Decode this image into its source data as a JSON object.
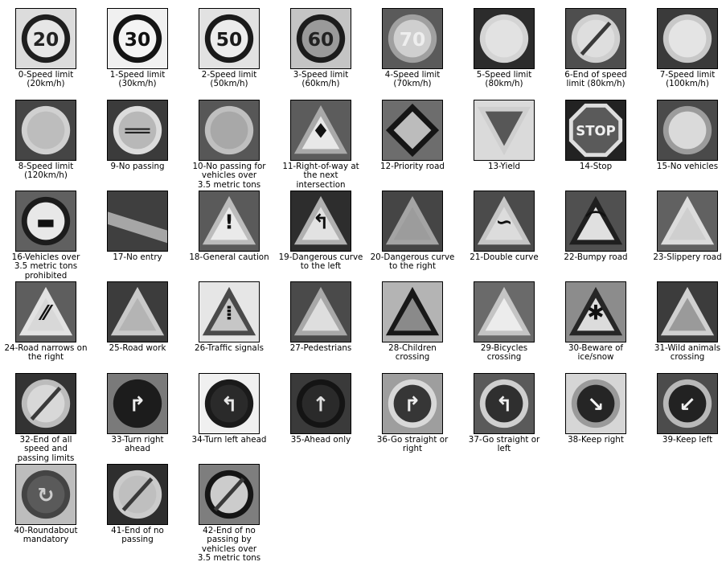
{
  "figure": {
    "signs": [
      {
        "label": "0-Speed limit\n(20km/h)",
        "icon": "speed-limit-20-sign",
        "bg": "#dcdcdc",
        "ring": "#1e1e1e",
        "fill": "#e6e6e6",
        "shape": "circle",
        "glyph": "20",
        "glyph_color": "#222"
      },
      {
        "label": "1-Speed limit\n(30km/h)",
        "icon": "speed-limit-30-sign",
        "bg": "#f0f0f0",
        "ring": "#141414",
        "fill": "#f4f4f4",
        "shape": "circle",
        "glyph": "30",
        "glyph_color": "#111"
      },
      {
        "label": "2-Speed limit\n(50km/h)",
        "icon": "speed-limit-50-sign",
        "bg": "#e2e2e2",
        "ring": "#1a1a1a",
        "fill": "#ececec",
        "shape": "circle",
        "glyph": "50",
        "glyph_color": "#1a1a1a"
      },
      {
        "label": "3-Speed limit\n(60km/h)",
        "icon": "speed-limit-60-sign",
        "bg": "#c4c4c4",
        "ring": "#1c1c1c",
        "fill": "#9a9a9a",
        "shape": "circle",
        "glyph": "60",
        "glyph_color": "#222"
      },
      {
        "label": "4-Speed limit\n(70km/h)",
        "icon": "speed-limit-70-sign",
        "bg": "#5a5a5a",
        "ring": "#a0a0a0",
        "fill": "#cfcfcf",
        "shape": "circle",
        "glyph": "70",
        "glyph_color": "#eee"
      },
      {
        "label": "5-Speed limit\n(80km/h)",
        "icon": "speed-limit-80-sign",
        "bg": "#2c2c2c",
        "ring": "#d4d4d4",
        "fill": "#e2e2e2",
        "shape": "circle",
        "glyph": "",
        "glyph_color": "#999"
      },
      {
        "label": "6-End of speed\nlimit (80km/h)",
        "icon": "end-speed-limit-80-sign",
        "bg": "#4e4e4e",
        "ring": "#cfcfcf",
        "fill": "#dedede",
        "shape": "circle-slash",
        "glyph": "",
        "glyph_color": "#222"
      },
      {
        "label": "7-Speed limit\n(100km/h)",
        "icon": "speed-limit-100-sign",
        "bg": "#3a3a3a",
        "ring": "#c8c8c8",
        "fill": "#e4e4e4",
        "shape": "circle",
        "glyph": "",
        "glyph_color": "#aaa"
      },
      {
        "label": "8-Speed limit\n(120km/h)",
        "icon": "speed-limit-120-sign",
        "bg": "#454545",
        "ring": "#d0d0d0",
        "fill": "#bdbdbd",
        "shape": "circle",
        "glyph": "",
        "glyph_color": "#777"
      },
      {
        "label": "9-No passing",
        "icon": "no-passing-sign",
        "bg": "#3b3b3b",
        "ring": "#dcdcdc",
        "fill": "#b8b8b8",
        "shape": "circle",
        "glyph": "══",
        "glyph_color": "#222"
      },
      {
        "label": "10-No passing for\nvehicles over\n3.5 metric tons",
        "icon": "no-passing-heavy-vehicles-sign",
        "bg": "#575757",
        "ring": "#bfbfbf",
        "fill": "#a8a8a8",
        "shape": "circle",
        "glyph": "",
        "glyph_color": "#444"
      },
      {
        "label": "11-Right-of-way at\nthe next\nintersection",
        "icon": "right-of-way-sign",
        "bg": "#5c5c5c",
        "ring": "#a9a9a9",
        "fill": "#e8e8e8",
        "shape": "triangle",
        "glyph": "♦",
        "glyph_color": "#111"
      },
      {
        "label": "12-Priority road",
        "icon": "priority-road-sign",
        "bg": "#6d6d6d",
        "ring": "#151515",
        "fill": "#bcbcbc",
        "shape": "diamond",
        "glyph": "",
        "glyph_color": "#222"
      },
      {
        "label": "13-Yield",
        "icon": "yield-sign",
        "bg": "#dadada",
        "ring": "#cfcfcf",
        "fill": "#575757",
        "shape": "inverted-triangle",
        "glyph": "",
        "glyph_color": "#222"
      },
      {
        "label": "14-Stop",
        "icon": "stop-sign",
        "bg": "#222222",
        "ring": "#dedede",
        "fill": "#5a5a5a",
        "shape": "octagon",
        "glyph": "STOP",
        "glyph_color": "#f0f0f0"
      },
      {
        "label": "15-No vehicles",
        "icon": "no-vehicles-sign",
        "bg": "#4a4a4a",
        "ring": "#9c9c9c",
        "fill": "#dadada",
        "shape": "circle",
        "glyph": "",
        "glyph_color": "#999"
      },
      {
        "label": "16-Vehicles over\n3.5 metric tons\nprohibited",
        "icon": "no-heavy-vehicles-sign",
        "bg": "#606060",
        "ring": "#1c1c1c",
        "fill": "#e8e8e8",
        "shape": "circle",
        "glyph": "▬",
        "glyph_color": "#111"
      },
      {
        "label": "17-No entry",
        "icon": "no-entry-sign",
        "bg": "#3f3f3f",
        "ring": "#a0a0a0",
        "fill": "#a6a6a6",
        "shape": "band",
        "glyph": "",
        "glyph_color": "#ccc"
      },
      {
        "label": "18-General caution",
        "icon": "general-caution-sign",
        "bg": "#5a5a5a",
        "ring": "#bcbcbc",
        "fill": "#eaeaea",
        "shape": "triangle",
        "glyph": "!",
        "glyph_color": "#111"
      },
      {
        "label": "19-Dangerous curve\nto the left",
        "icon": "curve-left-sign",
        "bg": "#2d2d2d",
        "ring": "#b0b0b0",
        "fill": "#e2e2e2",
        "shape": "triangle",
        "glyph": "↰",
        "glyph_color": "#111"
      },
      {
        "label": "20-Dangerous curve\nto the right",
        "icon": "curve-right-sign",
        "bg": "#454545",
        "ring": "#a4a4a4",
        "fill": "#9c9c9c",
        "shape": "triangle",
        "glyph": "",
        "glyph_color": "#333"
      },
      {
        "label": "21-Double curve",
        "icon": "double-curve-sign",
        "bg": "#4b4b4b",
        "ring": "#c6c6c6",
        "fill": "#dcdcdc",
        "shape": "triangle",
        "glyph": "∽",
        "glyph_color": "#111"
      },
      {
        "label": "22-Bumpy road",
        "icon": "bumpy-road-sign",
        "bg": "#505050",
        "ring": "#1f1f1f",
        "fill": "#e0e0e0",
        "shape": "triangle",
        "glyph": "⌒",
        "glyph_color": "#111"
      },
      {
        "label": "23-Slippery road",
        "icon": "slippery-road-sign",
        "bg": "#616161",
        "ring": "#dcdcdc",
        "fill": "#cfcfcf",
        "shape": "triangle",
        "glyph": "",
        "glyph_color": "#333"
      },
      {
        "label": "24-Road narrows on\nthe right",
        "icon": "road-narrows-sign",
        "bg": "#5e5e5e",
        "ring": "#e2e2e2",
        "fill": "#d8d8d8",
        "shape": "triangle",
        "glyph": "⁄⁄",
        "glyph_color": "#111"
      },
      {
        "label": "25-Road work",
        "icon": "road-work-sign",
        "bg": "#3c3c3c",
        "ring": "#c9c9c9",
        "fill": "#b4b4b4",
        "shape": "triangle",
        "glyph": "",
        "glyph_color": "#111"
      },
      {
        "label": "26-Traffic signals",
        "icon": "traffic-signals-sign",
        "bg": "#e6e6e6",
        "ring": "#4a4a4a",
        "fill": "#c6c6c6",
        "shape": "triangle",
        "glyph": "⁞",
        "glyph_color": "#111"
      },
      {
        "label": "27-Pedestrians",
        "icon": "pedestrians-sign",
        "bg": "#4a4a4a",
        "ring": "#a8a8a8",
        "fill": "#dedede",
        "shape": "triangle",
        "glyph": "",
        "glyph_color": "#222"
      },
      {
        "label": "28-Children\ncrossing",
        "icon": "children-crossing-sign",
        "bg": "#b4b4b4",
        "ring": "#181818",
        "fill": "#8a8a8a",
        "shape": "triangle",
        "glyph": "",
        "glyph_color": "#222"
      },
      {
        "label": "29-Bicycles\ncrossing",
        "icon": "bicycles-crossing-sign",
        "bg": "#6a6a6a",
        "ring": "#c4c4c4",
        "fill": "#ececec",
        "shape": "triangle",
        "glyph": "",
        "glyph_color": "#333"
      },
      {
        "label": "30-Beware of\nice/snow",
        "icon": "ice-snow-sign",
        "bg": "#8c8c8c",
        "ring": "#262626",
        "fill": "#dcdcdc",
        "shape": "triangle",
        "glyph": "✱",
        "glyph_color": "#111"
      },
      {
        "label": "31-Wild animals\ncrossing",
        "icon": "wild-animals-sign",
        "bg": "#3c3c3c",
        "ring": "#d0d0d0",
        "fill": "#9a9a9a",
        "shape": "triangle",
        "glyph": "",
        "glyph_color": "#333"
      },
      {
        "label": "32-End of all\nspeed and\npassing limits",
        "icon": "end-all-limits-sign",
        "bg": "#333333",
        "ring": "#bcbcbc",
        "fill": "#d8d8d8",
        "shape": "circle-slash",
        "glyph": "",
        "glyph_color": "#333"
      },
      {
        "label": "33-Turn right\nahead",
        "icon": "turn-right-sign",
        "bg": "#7a7a7a",
        "ring": "#1c1c1c",
        "fill": "#1c1c1c",
        "shape": "circle",
        "glyph": "↱",
        "glyph_color": "#eeeeee"
      },
      {
        "label": "34-Turn left ahead",
        "icon": "turn-left-sign",
        "bg": "#f0f0f0",
        "ring": "#1a1a1a",
        "fill": "#2a2a2a",
        "shape": "circle",
        "glyph": "↰",
        "glyph_color": "#e8e8e8"
      },
      {
        "label": "35-Ahead only",
        "icon": "ahead-only-sign",
        "bg": "#3a3a3a",
        "ring": "#141414",
        "fill": "#2a2a2a",
        "shape": "circle",
        "glyph": "↑",
        "glyph_color": "#dddddd"
      },
      {
        "label": "36-Go straight or\nright",
        "icon": "straight-or-right-sign",
        "bg": "#9e9e9e",
        "ring": "#d8d8d8",
        "fill": "#363636",
        "shape": "circle",
        "glyph": "↱",
        "glyph_color": "#eeeeee"
      },
      {
        "label": "37-Go straight or\nleft",
        "icon": "straight-or-left-sign",
        "bg": "#5a5a5a",
        "ring": "#cfcfcf",
        "fill": "#2f2f2f",
        "shape": "circle",
        "glyph": "↰",
        "glyph_color": "#f0f0f0"
      },
      {
        "label": "38-Keep right",
        "icon": "keep-right-sign",
        "bg": "#d6d6d6",
        "ring": "#9a9a9a",
        "fill": "#252525",
        "shape": "circle",
        "glyph": "↘",
        "glyph_color": "#f4f4f4"
      },
      {
        "label": "39-Keep left",
        "icon": "keep-left-sign",
        "bg": "#4c4c4c",
        "ring": "#b8b8b8",
        "fill": "#222222",
        "shape": "circle",
        "glyph": "↙",
        "glyph_color": "#f0f0f0"
      },
      {
        "label": "40-Roundabout\nmandatory",
        "icon": "roundabout-sign",
        "bg": "#bdbdbd",
        "ring": "#444444",
        "fill": "#5a5a5a",
        "shape": "circle",
        "glyph": "↻",
        "glyph_color": "#cccccc"
      },
      {
        "label": "41-End of no\npassing",
        "icon": "end-no-passing-sign",
        "bg": "#2e2e2e",
        "ring": "#cbcbcb",
        "fill": "#bfbfbf",
        "shape": "circle-slash",
        "glyph": "",
        "glyph_color": "#333"
      },
      {
        "label": "42-End of no\npassing by\nvehicles over\n3.5 metric tons",
        "icon": "end-no-passing-heavy-sign",
        "bg": "#7e7e7e",
        "ring": "#151515",
        "fill": "#cccccc",
        "shape": "circle-slash",
        "glyph": "",
        "glyph_color": "#222"
      }
    ]
  }
}
